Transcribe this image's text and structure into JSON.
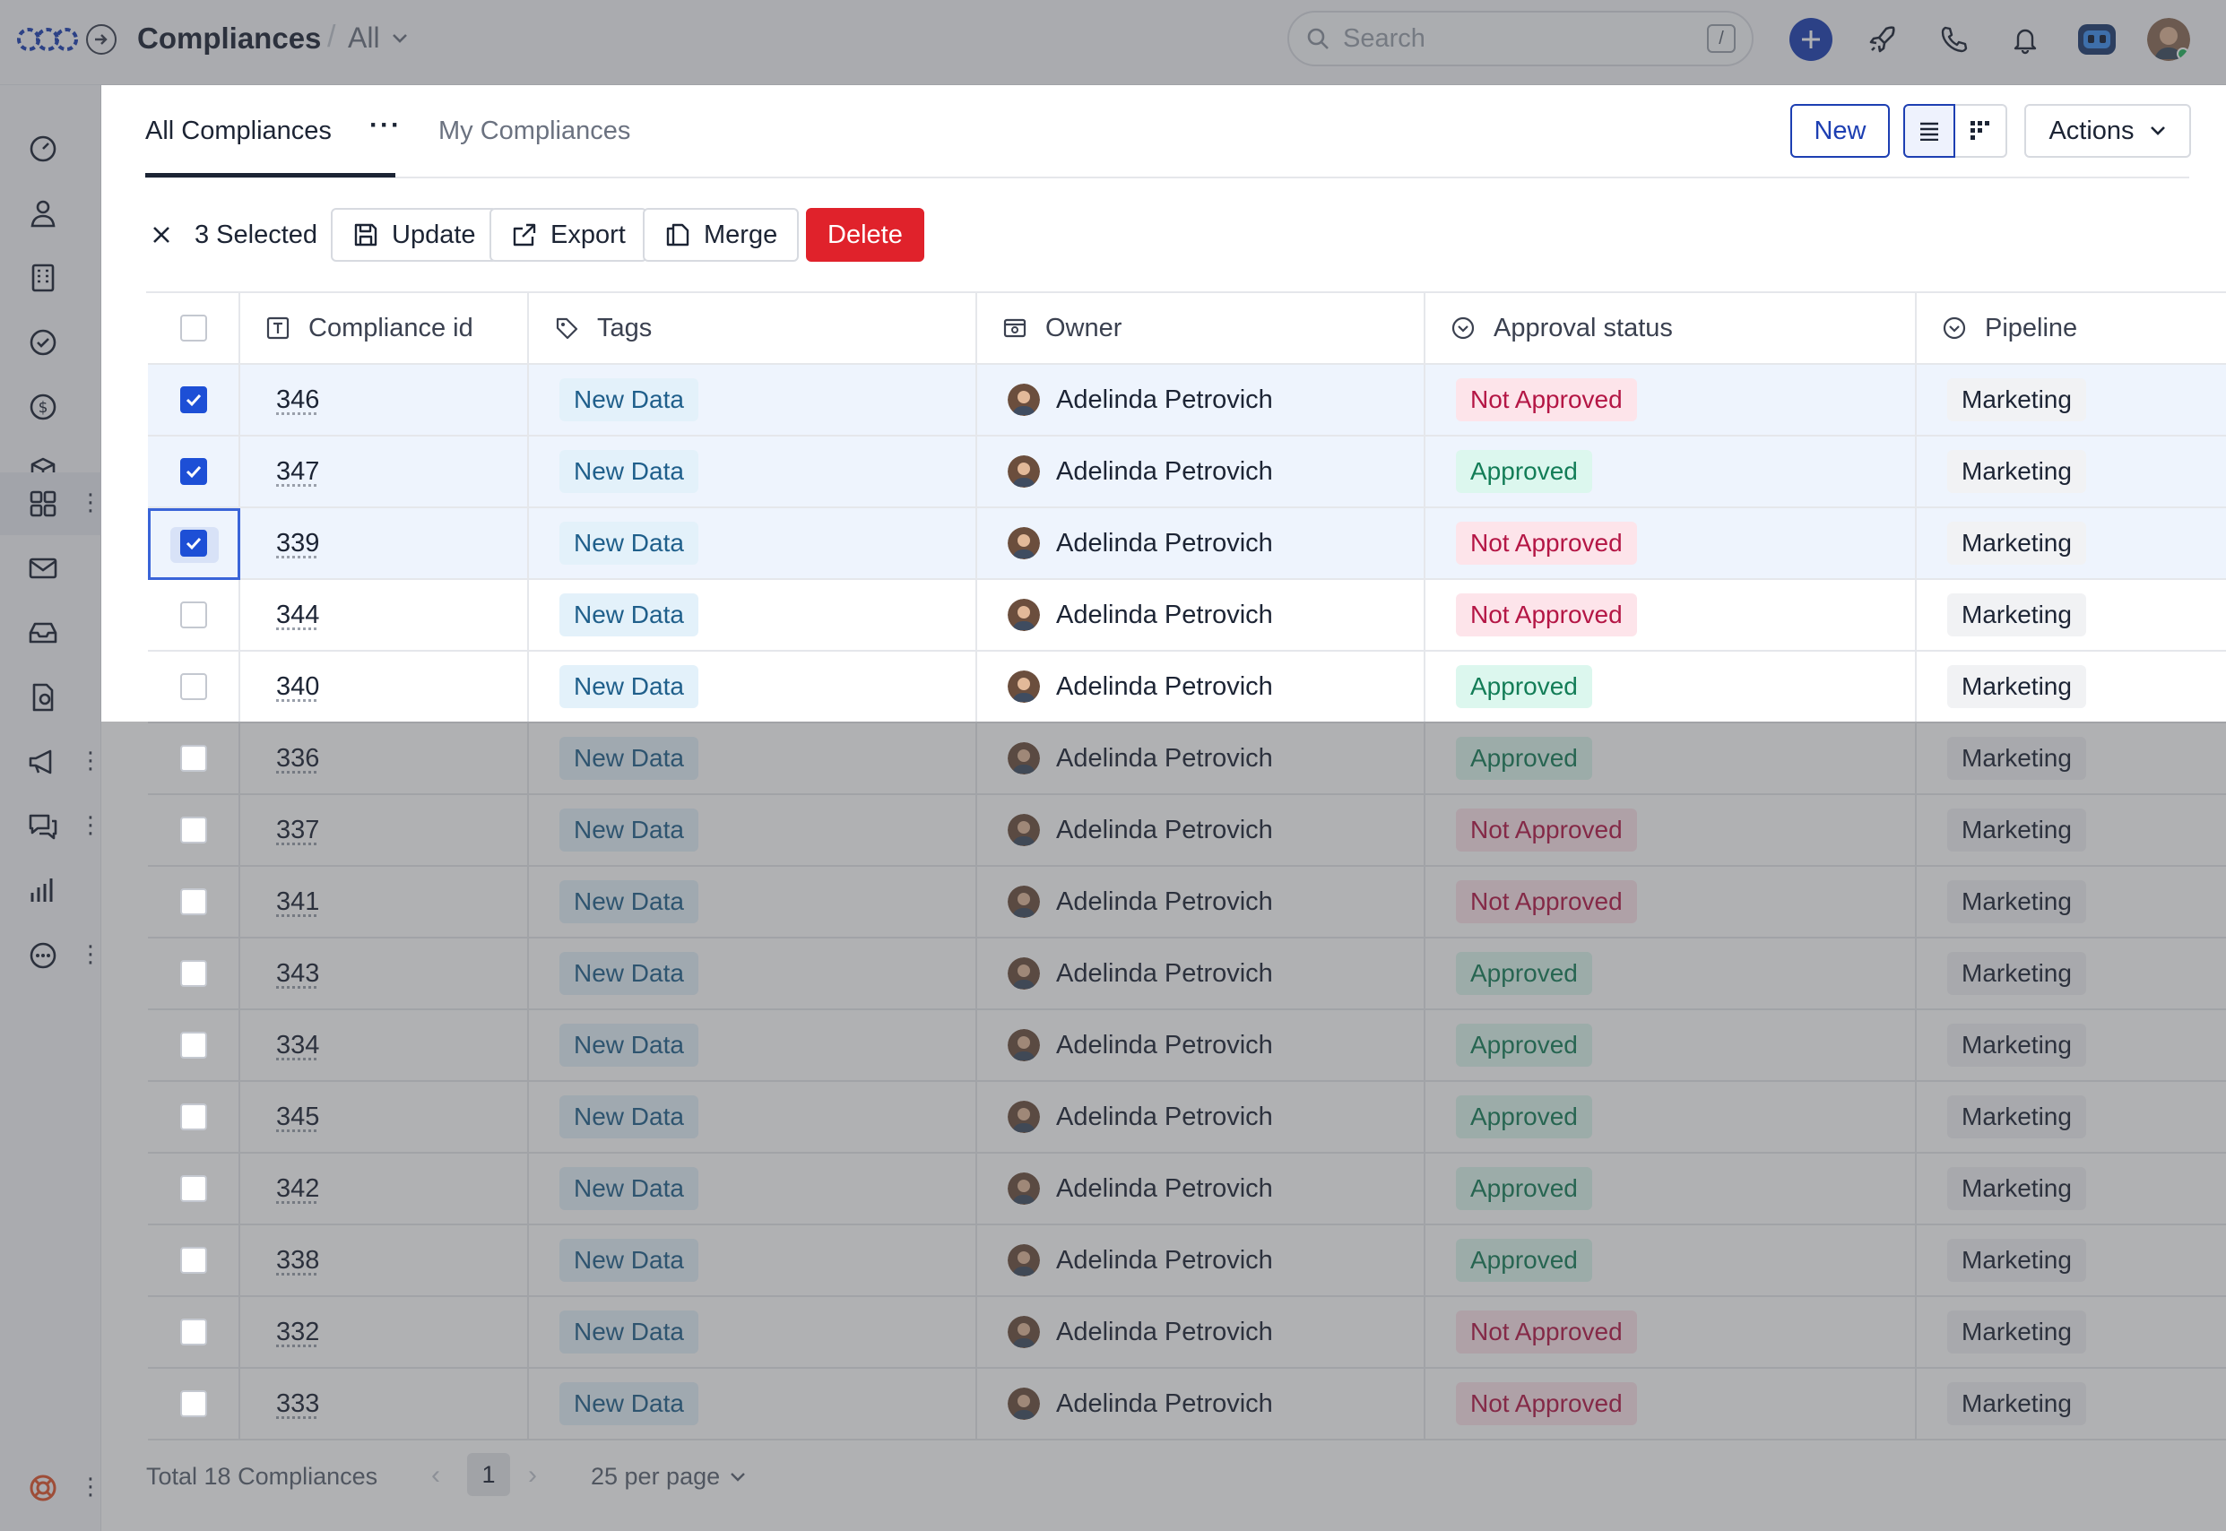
{
  "topbar": {
    "app_title": "Compliances",
    "view_label": "All",
    "search_placeholder": "Search",
    "search_shortcut": "/"
  },
  "sidebar": {
    "items": [
      {
        "icon": "dashboard-gauge-icon"
      },
      {
        "icon": "contacts-person-icon"
      },
      {
        "icon": "accounts-building-icon"
      },
      {
        "icon": "tasks-check-icon"
      },
      {
        "icon": "deals-dollar-icon"
      },
      {
        "icon": "products-box-icon"
      },
      {
        "icon": "apps-grid-icon",
        "active": true
      },
      {
        "icon": "mail-icon"
      },
      {
        "icon": "inbox-tray-icon"
      },
      {
        "icon": "documents-icon"
      },
      {
        "icon": "campaigns-megaphone-icon"
      },
      {
        "icon": "chat-bubbles-icon"
      },
      {
        "icon": "reports-bar-chart-icon"
      },
      {
        "icon": "more-dots-icon"
      }
    ],
    "bottom_icon": "help-lifebuoy-icon"
  },
  "tabs": {
    "all": "All Compliances",
    "mine": "My Compliances"
  },
  "toolbar": {
    "new_label": "New",
    "actions_label": "Actions"
  },
  "selection": {
    "count_label": "3 Selected",
    "update_label": "Update",
    "export_label": "Export",
    "merge_label": "Merge",
    "delete_label": "Delete"
  },
  "table": {
    "columns": {
      "id": "Compliance id",
      "tags": "Tags",
      "owner": "Owner",
      "status": "Approval status",
      "pipeline": "Pipeline"
    },
    "rows": [
      {
        "checked": true,
        "id": "346",
        "tag": "New Data",
        "owner": "Adelinda Petrovich",
        "status": "Not Approved",
        "pipeline": "Marketing"
      },
      {
        "checked": true,
        "id": "347",
        "tag": "New Data",
        "owner": "Adelinda Petrovich",
        "status": "Approved",
        "pipeline": "Marketing"
      },
      {
        "checked": true,
        "id": "339",
        "tag": "New Data",
        "owner": "Adelinda Petrovich",
        "status": "Not Approved",
        "pipeline": "Marketing"
      },
      {
        "checked": false,
        "id": "344",
        "tag": "New Data",
        "owner": "Adelinda Petrovich",
        "status": "Not Approved",
        "pipeline": "Marketing"
      },
      {
        "checked": false,
        "id": "340",
        "tag": "New Data",
        "owner": "Adelinda Petrovich",
        "status": "Approved",
        "pipeline": "Marketing"
      },
      {
        "checked": false,
        "id": "336",
        "tag": "New Data",
        "owner": "Adelinda Petrovich",
        "status": "Approved",
        "pipeline": "Marketing"
      },
      {
        "checked": false,
        "id": "337",
        "tag": "New Data",
        "owner": "Adelinda Petrovich",
        "status": "Not Approved",
        "pipeline": "Marketing"
      },
      {
        "checked": false,
        "id": "341",
        "tag": "New Data",
        "owner": "Adelinda Petrovich",
        "status": "Not Approved",
        "pipeline": "Marketing"
      },
      {
        "checked": false,
        "id": "343",
        "tag": "New Data",
        "owner": "Adelinda Petrovich",
        "status": "Approved",
        "pipeline": "Marketing"
      },
      {
        "checked": false,
        "id": "334",
        "tag": "New Data",
        "owner": "Adelinda Petrovich",
        "status": "Approved",
        "pipeline": "Marketing"
      },
      {
        "checked": false,
        "id": "345",
        "tag": "New Data",
        "owner": "Adelinda Petrovich",
        "status": "Approved",
        "pipeline": "Marketing"
      },
      {
        "checked": false,
        "id": "342",
        "tag": "New Data",
        "owner": "Adelinda Petrovich",
        "status": "Approved",
        "pipeline": "Marketing"
      },
      {
        "checked": false,
        "id": "338",
        "tag": "New Data",
        "owner": "Adelinda Petrovich",
        "status": "Approved",
        "pipeline": "Marketing"
      },
      {
        "checked": false,
        "id": "332",
        "tag": "New Data",
        "owner": "Adelinda Petrovich",
        "status": "Not Approved",
        "pipeline": "Marketing"
      },
      {
        "checked": false,
        "id": "333",
        "tag": "New Data",
        "owner": "Adelinda Petrovich",
        "status": "Not Approved",
        "pipeline": "Marketing"
      }
    ]
  },
  "footer": {
    "total_label": "Total 18 Compliances",
    "current_page": "1",
    "per_page_label": "25 per page"
  },
  "colors": {
    "accent": "#1d3fb2",
    "delete": "#e0222b",
    "approved_bg": "#dcf7ee",
    "not_approved_bg": "#fde4ea",
    "tag_bg": "#e3f1fa",
    "overlay": "#42444a"
  }
}
